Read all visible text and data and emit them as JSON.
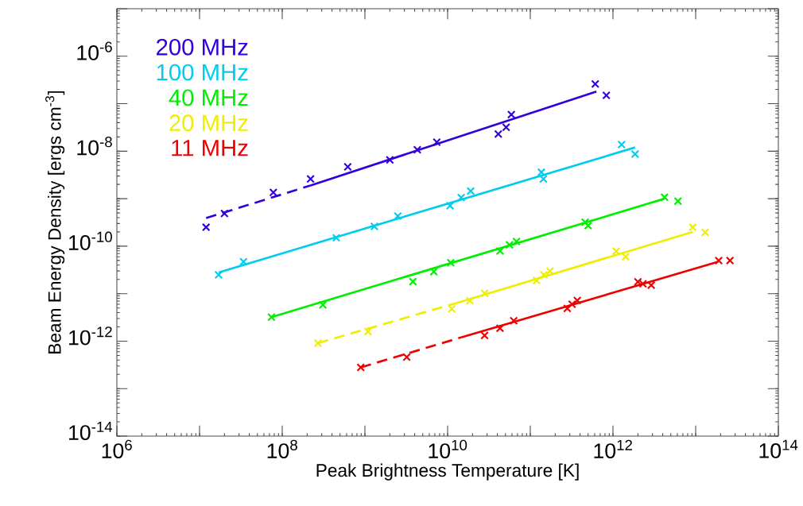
{
  "chart_data": {
    "type": "scatter",
    "xlabel": "Peak Brightness Temperature [K]",
    "ylabel": "Beam Energy Density [ergs cm$^{-3}$]",
    "log": "xy",
    "legend": "top left",
    "marker": "cross",
    "xlim": [
      1000000.0,
      100000000000000.0
    ],
    "ylim": [
      1e-14,
      1e-05
    ],
    "xticks": [
      {
        "value": 1000000.0,
        "label": "10$^{6}$"
      },
      {
        "value": 10000000.0,
        "label": null
      },
      {
        "value": 100000000.0,
        "label": "10$^{8}$"
      },
      {
        "value": 1000000000.0,
        "label": null
      },
      {
        "value": 10000000000.0,
        "label": "10$^{10}$"
      },
      {
        "value": 100000000000.0,
        "label": null
      },
      {
        "value": 1000000000000.0,
        "label": "10$^{12}$"
      },
      {
        "value": 10000000000000.0,
        "label": null
      },
      {
        "value": 100000000000000.0,
        "label": "10$^{14}$"
      }
    ],
    "yticks": [
      {
        "value": 1e-14,
        "label": "10$^{-14}$"
      },
      {
        "value": 1e-13,
        "label": null
      },
      {
        "value": 1e-12,
        "label": "10$^{-12}$"
      },
      {
        "value": 1e-11,
        "label": null
      },
      {
        "value": 1e-10,
        "label": "10$^{-10}$"
      },
      {
        "value": 1e-09,
        "label": null
      },
      {
        "value": 1e-08,
        "label": "10$^{-8}$"
      },
      {
        "value": 1e-07,
        "label": null
      },
      {
        "value": 1e-06,
        "label": "10$^{-6}$"
      },
      {
        "value": 1e-05,
        "label": null
      }
    ],
    "series": [
      {
        "name": "200 MHz",
        "color": "#3300dd",
        "x": [
          12000000.0,
          20000000.0,
          78000000.0,
          220000000.0,
          620000000.0,
          2000000000.0,
          4300000000.0,
          7400000000.0,
          41000000000.0,
          51000000000.0,
          59000000000.0,
          610000000000.0,
          830000000000.0
        ],
        "values": [
          2.5e-10,
          4.9e-10,
          1.35e-09,
          2.6e-09,
          4.7e-09,
          6.6e-09,
          1.07e-08,
          1.55e-08,
          2.3e-08,
          3.2e-08,
          5.9e-08,
          2.6e-07,
          1.5e-07
        ]
      },
      {
        "name": "100 MHz",
        "color": "#00ccee",
        "x": [
          17000000.0,
          34000000.0,
          450000000.0,
          1300000000.0,
          2500000000.0,
          10700000000.0,
          14600000000.0,
          19000000000.0,
          136000000000.0,
          144000000000.0,
          1270000000000.0,
          1850000000000.0
        ],
        "values": [
          2.5e-11,
          4.7e-11,
          1.5e-10,
          2.6e-10,
          4.3e-10,
          7.1e-10,
          1.05e-09,
          1.45e-09,
          3.6e-09,
          2.6e-09,
          1.38e-08,
          8.7e-09
        ]
      },
      {
        "name": "40 MHz",
        "color": "#00ee00",
        "x": [
          74000000.0,
          310000000.0,
          3800000000.0,
          6800000000.0,
          10900000000.0,
          43000000000.0,
          56000000000.0,
          68000000000.0,
          460000000000.0,
          500000000000.0,
          4200000000000.0,
          6100000000000.0
        ],
        "values": [
          3.2e-12,
          5.8e-12,
          1.8e-11,
          2.9e-11,
          4.5e-11,
          7.9e-11,
          1.07e-10,
          1.26e-10,
          3.2e-10,
          2.7e-10,
          1.07e-09,
          8.9e-10
        ]
      },
      {
        "name": "20 MHz",
        "color": "#eeee00",
        "x": [
          270000000.0,
          1090000000.0,
          11200000000.0,
          18600000000.0,
          28000000000.0,
          119000000000.0,
          146000000000.0,
          173000000000.0,
          1090000000000.0,
          1420000000000.0,
          9200000000000.0,
          13000000000000.0
        ],
        "values": [
          9.1e-13,
          1.58e-12,
          4.8e-12,
          7.1e-12,
          1.02e-11,
          1.9e-11,
          2.5e-11,
          3e-11,
          7.8e-11,
          6e-11,
          2.5e-10,
          1.95e-10
        ]
      },
      {
        "name": "11 MHz",
        "color": "#ee0000",
        "x": [
          890000000.0,
          3200000000.0,
          28000000000.0,
          43000000000.0,
          63000000000.0,
          280000000000.0,
          320000000000.0,
          370000000000.0,
          2000000000000.0,
          2300000000000.0,
          2900000000000.0,
          19000000000000.0,
          26000000000000.0
        ],
        "values": [
          2.8e-13,
          4.6e-13,
          1.32e-12,
          1.86e-12,
          2.7e-12,
          4.9e-12,
          6e-12,
          7.2e-12,
          1.78e-11,
          1.62e-11,
          1.51e-11,
          5e-11,
          5e-11
        ]
      },
      {
        "type": "line",
        "color": "#3300dd",
        "line_style": "dashed",
        "marker": "none",
        "x": [
          12000000.0,
          220000000.0
        ],
        "values": [
          3.9e-10,
          1.9e-09
        ]
      },
      {
        "type": "line",
        "color": "#3300dd",
        "line_style": "solid",
        "marker": "none",
        "x": [
          220000000.0,
          630000000000.0
        ],
        "values": [
          1.9e-09,
          1.8e-07
        ]
      },
      {
        "type": "line",
        "color": "#00ccee",
        "line_style": "solid",
        "marker": "none",
        "x": [
          17000000.0,
          1850000000000.0
        ],
        "values": [
          2.8e-11,
          1.2e-08
        ]
      },
      {
        "type": "line",
        "color": "#00ee00",
        "line_style": "solid",
        "marker": "none",
        "x": [
          74000000.0,
          4200000000000.0
        ],
        "values": [
          3.2e-12,
          1e-09
        ]
      },
      {
        "type": "line",
        "color": "#eeee00",
        "line_style": "dashed",
        "marker": "none",
        "x": [
          270000000.0,
          12600000000.0
        ],
        "values": [
          9.1e-13,
          6.3e-12
        ]
      },
      {
        "type": "line",
        "color": "#eeee00",
        "line_style": "solid",
        "marker": "none",
        "x": [
          12600000000.0,
          9200000000000.0
        ],
        "values": [
          6.3e-12,
          2e-10
        ]
      },
      {
        "type": "line",
        "color": "#ee0000",
        "line_style": "dashed",
        "marker": "none",
        "x": [
          890000000.0,
          14600000000.0
        ],
        "values": [
          2.8e-13,
          1.2e-12
        ]
      },
      {
        "type": "line",
        "color": "#ee0000",
        "line_style": "solid",
        "marker": "none",
        "x": [
          14600000000.0,
          18700000000000.0
        ],
        "values": [
          1.2e-12,
          4.7e-11
        ]
      }
    ]
  }
}
